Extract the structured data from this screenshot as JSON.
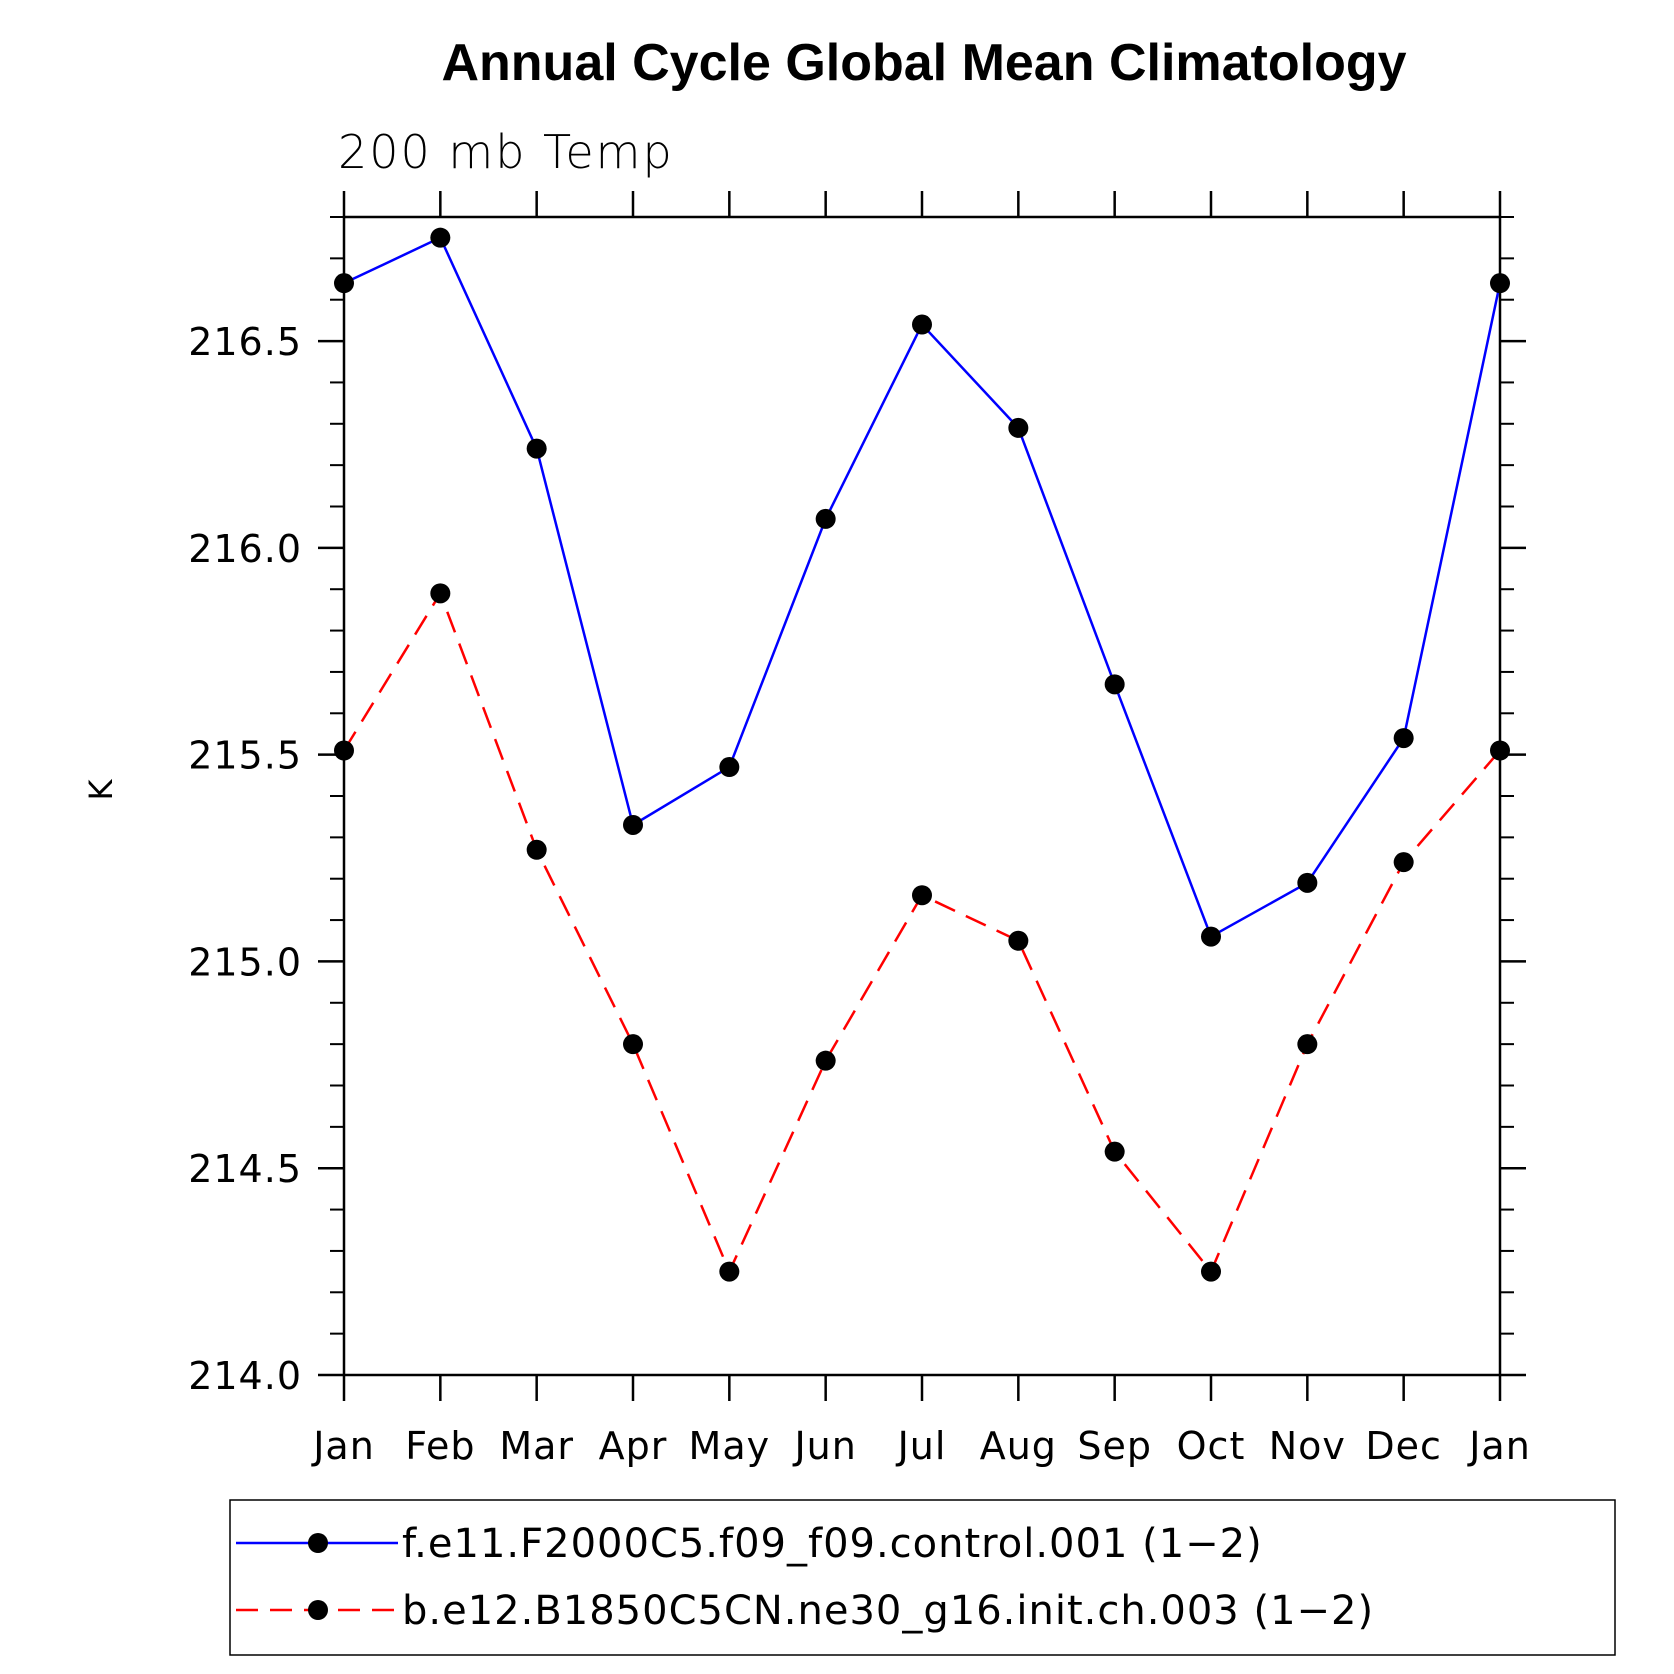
{
  "chart_data": {
    "type": "line",
    "title": "Annual Cycle Global Mean Climatology",
    "subtitle": "200 mb Temp",
    "xlabel": "",
    "ylabel": "K",
    "categories": [
      "Jan",
      "Feb",
      "Mar",
      "Apr",
      "May",
      "Jun",
      "Jul",
      "Aug",
      "Sep",
      "Oct",
      "Nov",
      "Dec",
      "Jan"
    ],
    "ylim": [
      214.0,
      216.8
    ],
    "yticks": [
      "214.0",
      "214.5",
      "215.0",
      "215.5",
      "216.0",
      "216.5"
    ],
    "grid": false,
    "legend_position": "bottom",
    "series": [
      {
        "name": "f.e11.F2000C5.f09_f09.control.001 (1−2)",
        "color": "#0000ff",
        "line_style": "solid",
        "marker": "filled-circle",
        "values": [
          216.64,
          216.75,
          216.24,
          215.33,
          215.47,
          216.07,
          216.54,
          216.29,
          215.67,
          215.06,
          215.19,
          215.54,
          216.64
        ]
      },
      {
        "name": "b.e12.B1850C5CN.ne30_g16.init.ch.003 (1−2)",
        "color": "#ff0000",
        "line_style": "dashed",
        "marker": "filled-circle",
        "values": [
          215.51,
          215.89,
          215.27,
          214.8,
          214.25,
          214.76,
          215.16,
          215.05,
          214.54,
          214.25,
          214.8,
          215.24,
          215.51
        ]
      }
    ]
  }
}
